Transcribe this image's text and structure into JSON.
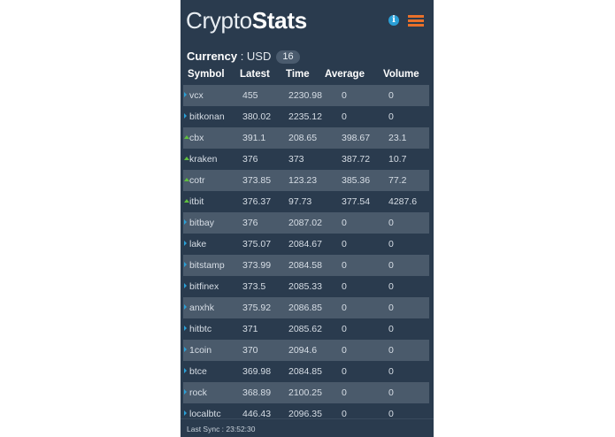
{
  "header": {
    "brand_light": "Crypto",
    "brand_bold": "Stats",
    "info_icon": "info-icon",
    "menu_icon": "hamburger-menu-icon",
    "colors": {
      "info": "#2a9fd6",
      "menu": "#e8702a"
    }
  },
  "currency": {
    "label": "Currency",
    "separator": " : ",
    "value": "USD",
    "count": "16"
  },
  "table": {
    "headers": {
      "symbol": "Symbol",
      "latest": "Latest",
      "time": "Time",
      "average": "Average",
      "volume": "Volume"
    },
    "rows": [
      {
        "trend": "right",
        "symbol": "vcx",
        "latest": "455",
        "time": "2230.98",
        "average": "0",
        "volume": "0"
      },
      {
        "trend": "right",
        "symbol": "bitkonan",
        "latest": "380.02",
        "time": "2235.12",
        "average": "0",
        "volume": "0"
      },
      {
        "trend": "up",
        "symbol": "cbx",
        "latest": "391.1",
        "time": "208.65",
        "average": "398.67",
        "volume": "23.1"
      },
      {
        "trend": "up",
        "symbol": "kraken",
        "latest": "376",
        "time": "373",
        "average": "387.72",
        "volume": "10.7"
      },
      {
        "trend": "up",
        "symbol": "cotr",
        "latest": "373.85",
        "time": "123.23",
        "average": "385.36",
        "volume": "77.2"
      },
      {
        "trend": "up",
        "symbol": "itbit",
        "latest": "376.37",
        "time": "97.73",
        "average": "377.54",
        "volume": "4287.6"
      },
      {
        "trend": "right",
        "symbol": "bitbay",
        "latest": "376",
        "time": "2087.02",
        "average": "0",
        "volume": "0"
      },
      {
        "trend": "right",
        "symbol": "lake",
        "latest": "375.07",
        "time": "2084.67",
        "average": "0",
        "volume": "0"
      },
      {
        "trend": "right",
        "symbol": "bitstamp",
        "latest": "373.99",
        "time": "2084.58",
        "average": "0",
        "volume": "0"
      },
      {
        "trend": "right",
        "symbol": "bitfinex",
        "latest": "373.5",
        "time": "2085.33",
        "average": "0",
        "volume": "0"
      },
      {
        "trend": "right",
        "symbol": "anxhk",
        "latest": "375.92",
        "time": "2086.85",
        "average": "0",
        "volume": "0"
      },
      {
        "trend": "right",
        "symbol": "hitbtc",
        "latest": "371",
        "time": "2085.62",
        "average": "0",
        "volume": "0"
      },
      {
        "trend": "right",
        "symbol": "1coin",
        "latest": "370",
        "time": "2094.6",
        "average": "0",
        "volume": "0"
      },
      {
        "trend": "right",
        "symbol": "btce",
        "latest": "369.98",
        "time": "2084.85",
        "average": "0",
        "volume": "0"
      },
      {
        "trend": "right",
        "symbol": "rock",
        "latest": "368.89",
        "time": "2100.25",
        "average": "0",
        "volume": "0"
      },
      {
        "trend": "right",
        "symbol": "localbtc",
        "latest": "446.43",
        "time": "2096.35",
        "average": "0",
        "volume": "0"
      }
    ]
  },
  "footer": {
    "last_sync": "Last Sync : 23:52:30"
  }
}
